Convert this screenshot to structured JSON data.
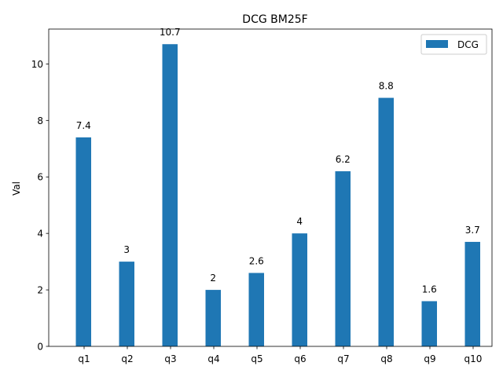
{
  "chart_data": {
    "type": "bar",
    "title": "DCG BM25F",
    "xlabel": "",
    "ylabel": "Val",
    "categories": [
      "q1",
      "q2",
      "q3",
      "q4",
      "q5",
      "q6",
      "q7",
      "q8",
      "q9",
      "q10"
    ],
    "series": [
      {
        "name": "DCG",
        "values": [
          7.4,
          3,
          10.7,
          2,
          2.6,
          4,
          6.2,
          8.8,
          1.6,
          3.7
        ],
        "color": "#1f77b4"
      }
    ],
    "ylim": [
      0,
      11.235
    ],
    "yticks": [
      0,
      2,
      4,
      6,
      8,
      10
    ],
    "grid": false,
    "legend_position": "top-right",
    "data_labels": [
      "7.4",
      "3",
      "10.7",
      "2",
      "2.6",
      "4",
      "6.2",
      "8.8",
      "1.6",
      "3.7"
    ]
  }
}
